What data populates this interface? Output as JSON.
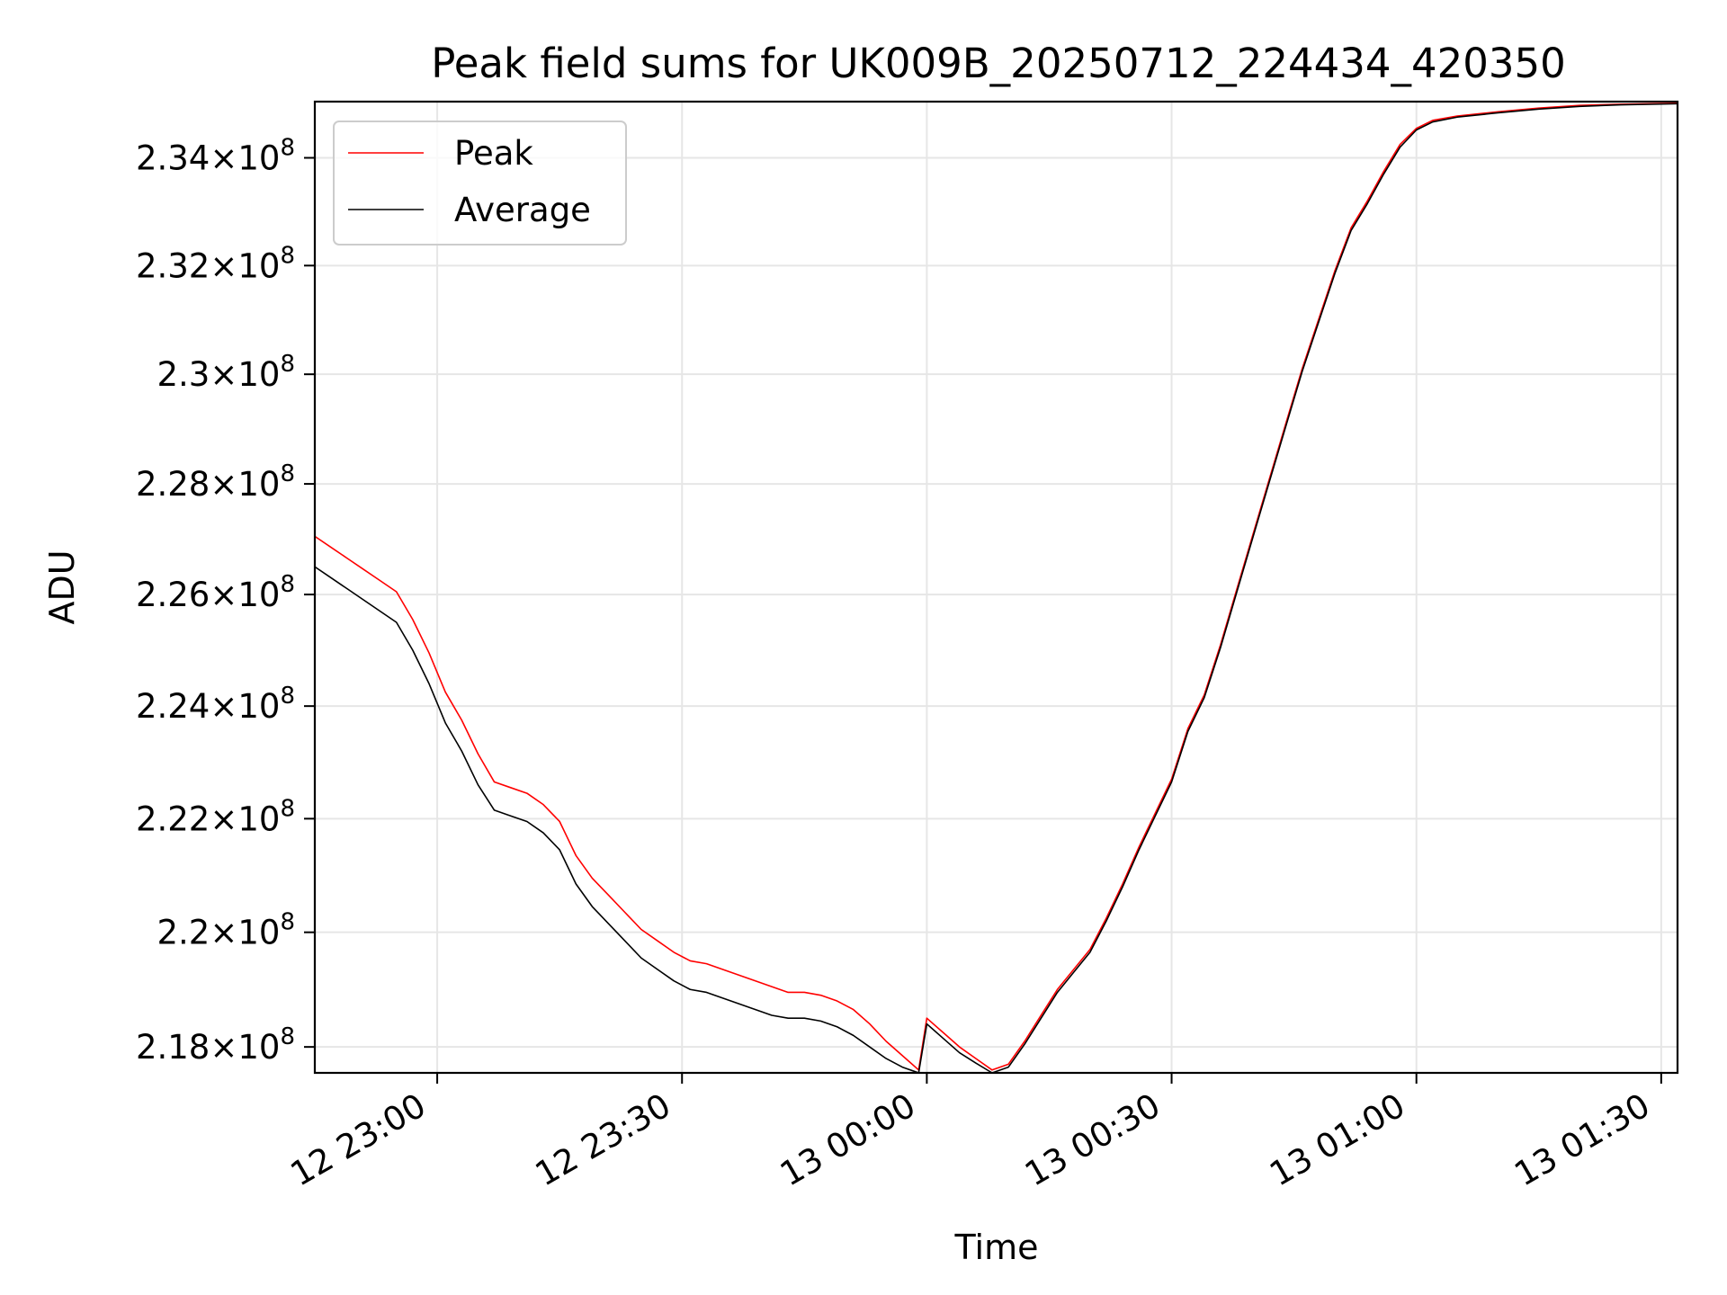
{
  "chart_data": {
    "type": "line",
    "title": "Peak field sums for UK009B_20250712_224434_420350",
    "xlabel": "Time",
    "ylabel": "ADU",
    "xlim": [
      "12 22:45",
      "13 01:32"
    ],
    "ylim": [
      217550000.0,
      235050000.0
    ],
    "x_ticks": [
      "12 23:00",
      "12 23:30",
      "13 00:00",
      "13 00:30",
      "13 01:00",
      "13 01:30"
    ],
    "y_ticks": [
      {
        "value": 218000000.0,
        "mantissa": "2.18",
        "exponent": "8"
      },
      {
        "value": 220000000.0,
        "mantissa": "2.2",
        "exponent": "8"
      },
      {
        "value": 222000000.0,
        "mantissa": "2.22",
        "exponent": "8"
      },
      {
        "value": 224000000.0,
        "mantissa": "2.24",
        "exponent": "8"
      },
      {
        "value": 226000000.0,
        "mantissa": "2.26",
        "exponent": "8"
      },
      {
        "value": 228000000.0,
        "mantissa": "2.28",
        "exponent": "8"
      },
      {
        "value": 230000000.0,
        "mantissa": "2.3",
        "exponent": "8"
      },
      {
        "value": 232000000.0,
        "mantissa": "2.32",
        "exponent": "8"
      },
      {
        "value": 234000000.0,
        "mantissa": "2.34",
        "exponent": "8"
      }
    ],
    "y_scale": "log",
    "grid": true,
    "legend_position": "top-left",
    "series": [
      {
        "name": "Peak",
        "color": "#ff0000",
        "points": [
          [
            "12 22:45",
            227050000.0
          ],
          [
            "12 22:47",
            226850000.0
          ],
          [
            "12 22:49",
            226650000.0
          ],
          [
            "12 22:51",
            226450000.0
          ],
          [
            "12 22:53",
            226250000.0
          ],
          [
            "12 22:55",
            226050000.0
          ],
          [
            "12 22:57",
            225550000.0
          ],
          [
            "12 22:59",
            224950000.0
          ],
          [
            "12 23:01",
            224250000.0
          ],
          [
            "12 23:03",
            223750000.0
          ],
          [
            "12 23:05",
            223150000.0
          ],
          [
            "12 23:07",
            222650000.0
          ],
          [
            "12 23:09",
            222550000.0
          ],
          [
            "12 23:11",
            222450000.0
          ],
          [
            "12 23:13",
            222250000.0
          ],
          [
            "12 23:15",
            221950000.0
          ],
          [
            "12 23:17",
            221350000.0
          ],
          [
            "12 23:19",
            220950000.0
          ],
          [
            "12 23:21",
            220650000.0
          ],
          [
            "12 23:23",
            220350000.0
          ],
          [
            "12 23:25",
            220050000.0
          ],
          [
            "12 23:27",
            219850000.0
          ],
          [
            "12 23:29",
            219650000.0
          ],
          [
            "12 23:31",
            219500000.0
          ],
          [
            "12 23:33",
            219450000.0
          ],
          [
            "12 23:35",
            219350000.0
          ],
          [
            "12 23:37",
            219250000.0
          ],
          [
            "12 23:39",
            219150000.0
          ],
          [
            "12 23:41",
            219050000.0
          ],
          [
            "12 23:43",
            218950000.0
          ],
          [
            "12 23:45",
            218950000.0
          ],
          [
            "12 23:47",
            218900000.0
          ],
          [
            "12 23:49",
            218800000.0
          ],
          [
            "12 23:51",
            218650000.0
          ],
          [
            "12 23:53",
            218400000.0
          ],
          [
            "12 23:55",
            218100000.0
          ],
          [
            "12 23:57",
            217850000.0
          ],
          [
            "12 23:59",
            217600000.0
          ],
          [
            "13 00:00",
            218500000.0
          ],
          [
            "13 00:02",
            218250000.0
          ],
          [
            "13 00:04",
            218000000.0
          ],
          [
            "13 00:06",
            217800000.0
          ],
          [
            "13 00:08",
            217600000.0
          ],
          [
            "13 00:10",
            217700000.0
          ],
          [
            "13 00:12",
            218100000.0
          ],
          [
            "13 00:14",
            218550000.0
          ],
          [
            "13 00:16",
            219000000.0
          ],
          [
            "13 00:18",
            219350000.0
          ],
          [
            "13 00:20",
            219700000.0
          ],
          [
            "13 00:22",
            220250000.0
          ],
          [
            "13 00:24",
            220850000.0
          ],
          [
            "13 00:26",
            221500000.0
          ],
          [
            "13 00:28",
            222100000.0
          ],
          [
            "13 00:30",
            222700000.0
          ],
          [
            "13 00:32",
            223600000.0
          ],
          [
            "13 00:34",
            224200000.0
          ],
          [
            "13 00:36",
            225100000.0
          ],
          [
            "13 00:38",
            226100000.0
          ],
          [
            "13 00:40",
            227100000.0
          ],
          [
            "13 00:42",
            228100000.0
          ],
          [
            "13 00:44",
            229100000.0
          ],
          [
            "13 00:46",
            230100000.0
          ],
          [
            "13 00:48",
            231000000.0
          ],
          [
            "13 00:50",
            231900000.0
          ],
          [
            "13 00:52",
            232700000.0
          ],
          [
            "13 00:54",
            233200000.0
          ],
          [
            "13 00:56",
            233750000.0
          ],
          [
            "13 00:58",
            234250000.0
          ],
          [
            "13 01:00",
            234550000.0
          ],
          [
            "13 01:02",
            234700000.0
          ],
          [
            "13 01:05",
            234780000.0
          ],
          [
            "13 01:10",
            234860000.0
          ],
          [
            "13 01:15",
            234930000.0
          ],
          [
            "13 01:20",
            234980000.0
          ],
          [
            "13 01:25",
            235000000.0
          ],
          [
            "13 01:32",
            235020000.0
          ]
        ]
      },
      {
        "name": "Average",
        "color": "#000000",
        "points": [
          [
            "12 22:45",
            226500000.0
          ],
          [
            "12 22:47",
            226300000.0
          ],
          [
            "12 22:49",
            226100000.0
          ],
          [
            "12 22:51",
            225900000.0
          ],
          [
            "12 22:53",
            225700000.0
          ],
          [
            "12 22:55",
            225500000.0
          ],
          [
            "12 22:57",
            225000000.0
          ],
          [
            "12 22:59",
            224400000.0
          ],
          [
            "12 23:01",
            223700000.0
          ],
          [
            "12 23:03",
            223200000.0
          ],
          [
            "12 23:05",
            222600000.0
          ],
          [
            "12 23:07",
            222150000.0
          ],
          [
            "12 23:09",
            222050000.0
          ],
          [
            "12 23:11",
            221950000.0
          ],
          [
            "12 23:13",
            221750000.0
          ],
          [
            "12 23:15",
            221450000.0
          ],
          [
            "12 23:17",
            220850000.0
          ],
          [
            "12 23:19",
            220450000.0
          ],
          [
            "12 23:21",
            220150000.0
          ],
          [
            "12 23:23",
            219850000.0
          ],
          [
            "12 23:25",
            219550000.0
          ],
          [
            "12 23:27",
            219350000.0
          ],
          [
            "12 23:29",
            219150000.0
          ],
          [
            "12 23:31",
            219000000.0
          ],
          [
            "12 23:33",
            218950000.0
          ],
          [
            "12 23:35",
            218850000.0
          ],
          [
            "12 23:37",
            218750000.0
          ],
          [
            "12 23:39",
            218650000.0
          ],
          [
            "12 23:41",
            218550000.0
          ],
          [
            "12 23:43",
            218500000.0
          ],
          [
            "12 23:45",
            218500000.0
          ],
          [
            "12 23:47",
            218450000.0
          ],
          [
            "12 23:49",
            218350000.0
          ],
          [
            "12 23:51",
            218200000.0
          ],
          [
            "12 23:53",
            218000000.0
          ],
          [
            "12 23:55",
            217800000.0
          ],
          [
            "12 23:57",
            217650000.0
          ],
          [
            "12 23:59",
            217550000.0
          ],
          [
            "13 00:00",
            218400000.0
          ],
          [
            "13 00:02",
            218150000.0
          ],
          [
            "13 00:04",
            217900000.0
          ],
          [
            "13 00:06",
            217720000.0
          ],
          [
            "13 00:08",
            217550000.0
          ],
          [
            "13 00:10",
            217650000.0
          ],
          [
            "13 00:12",
            218050000.0
          ],
          [
            "13 00:14",
            218500000.0
          ],
          [
            "13 00:16",
            218950000.0
          ],
          [
            "13 00:18",
            219300000.0
          ],
          [
            "13 00:20",
            219650000.0
          ],
          [
            "13 00:22",
            220200000.0
          ],
          [
            "13 00:24",
            220800000.0
          ],
          [
            "13 00:26",
            221450000.0
          ],
          [
            "13 00:28",
            222050000.0
          ],
          [
            "13 00:30",
            222650000.0
          ],
          [
            "13 00:32",
            223550000.0
          ],
          [
            "13 00:34",
            224150000.0
          ],
          [
            "13 00:36",
            225050000.0
          ],
          [
            "13 00:38",
            226050000.0
          ],
          [
            "13 00:40",
            227050000.0
          ],
          [
            "13 00:42",
            228050000.0
          ],
          [
            "13 00:44",
            229050000.0
          ],
          [
            "13 00:46",
            230050000.0
          ],
          [
            "13 00:48",
            230950000.0
          ],
          [
            "13 00:50",
            231850000.0
          ],
          [
            "13 00:52",
            232650000.0
          ],
          [
            "13 00:54",
            233150000.0
          ],
          [
            "13 00:56",
            233700000.0
          ],
          [
            "13 00:58",
            234200000.0
          ],
          [
            "13 01:00",
            234520000.0
          ],
          [
            "13 01:02",
            234670000.0
          ],
          [
            "13 01:05",
            234760000.0
          ],
          [
            "13 01:10",
            234840000.0
          ],
          [
            "13 01:15",
            234910000.0
          ],
          [
            "13 01:20",
            234960000.0
          ],
          [
            "13 01:25",
            234990000.0
          ],
          [
            "13 01:32",
            235010000.0
          ]
        ]
      }
    ]
  }
}
